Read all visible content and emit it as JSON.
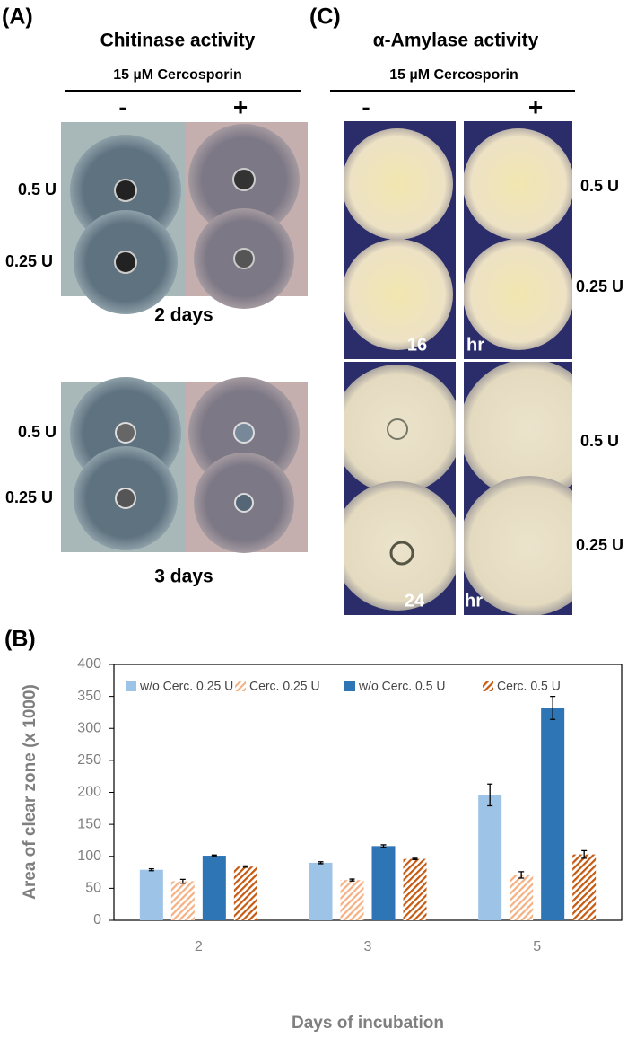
{
  "panel_a": {
    "label": "(A)",
    "title": "Chitinase activity",
    "treatment": "15 µM Cercosporin",
    "minus": "-",
    "plus": "+",
    "rows": [
      "0.5 U",
      "0.25 U"
    ],
    "times": [
      "2 days",
      "3 days"
    ]
  },
  "panel_c": {
    "label": "(C)",
    "title": "α-Amylase activity",
    "treatment": "15 µM Cercosporin",
    "minus": "-",
    "plus": "+",
    "rows": [
      "0.5 U",
      "0.25 U"
    ],
    "times": [
      "16",
      "hr",
      "24",
      "hr"
    ]
  },
  "chart_data": {
    "type": "bar",
    "label": "(B)",
    "x_label": "Days of incubation",
    "y_label": "Area of clear zone (x 1000)",
    "categories": [
      "2",
      "3",
      "5"
    ],
    "series": [
      {
        "name": "w/o Cerc. 0.25 U",
        "color": "#9dc3e6",
        "pattern": "solid",
        "values": [
          79,
          90,
          196
        ],
        "errors": [
          1.5,
          1.5,
          17
        ]
      },
      {
        "name": "Cerc. 0.25 U",
        "color": "#f4b183",
        "pattern": "hatch",
        "values": [
          61,
          63,
          71
        ],
        "errors": [
          3,
          1.5,
          5
        ]
      },
      {
        "name": "w/o Cerc. 0.5 U",
        "color": "#2e75b6",
        "pattern": "solid",
        "values": [
          101,
          116,
          332
        ],
        "errors": [
          1,
          2,
          18
        ]
      },
      {
        "name": "Cerc. 0.5 U",
        "color": "#c55a11",
        "pattern": "hatch",
        "values": [
          84,
          96,
          103
        ],
        "errors": [
          1,
          1,
          6
        ]
      }
    ],
    "ylim": [
      0,
      400
    ],
    "yticks": [
      0,
      50,
      100,
      150,
      200,
      250,
      300,
      350,
      400
    ],
    "grid": false
  }
}
